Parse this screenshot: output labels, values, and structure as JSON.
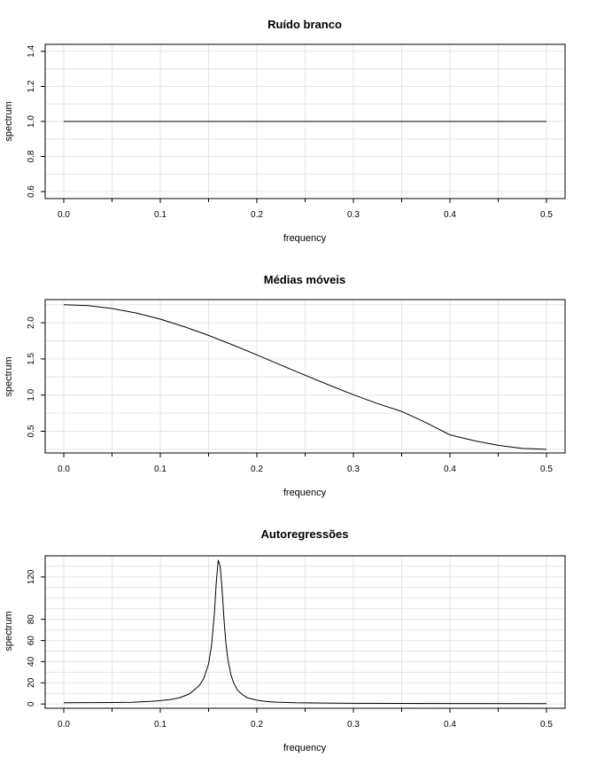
{
  "chart_data": [
    {
      "type": "line",
      "title": "Ruído branco",
      "xlabel": "frequency",
      "ylabel": "spectrum",
      "xlim": [
        0,
        0.5
      ],
      "ylim": [
        0.56,
        1.44
      ],
      "xticks": [
        0,
        0.1,
        0.2,
        0.3,
        0.4,
        0.5
      ],
      "xtick_labels": [
        "0.0",
        "0.1",
        "0.2",
        "0.3",
        "0.4",
        "0.5"
      ],
      "yticks": [
        0.6,
        0.8,
        1.0,
        1.2,
        1.4
      ],
      "ytick_labels": [
        "0.6",
        "0.8",
        "1.0",
        "1.2",
        "1.4"
      ],
      "grid": true,
      "series": [
        {
          "x": [
            0,
            0.05,
            0.1,
            0.15,
            0.2,
            0.25,
            0.3,
            0.35,
            0.4,
            0.45,
            0.5
          ],
          "y": [
            1,
            1,
            1,
            1,
            1,
            1,
            1,
            1,
            1,
            1,
            1
          ]
        }
      ]
    },
    {
      "type": "line",
      "title": "Médias móveis",
      "xlabel": "frequency",
      "ylabel": "spectrum",
      "xlim": [
        0,
        0.5
      ],
      "ylim": [
        0.2,
        2.32
      ],
      "xticks": [
        0,
        0.1,
        0.2,
        0.3,
        0.4,
        0.5
      ],
      "xtick_labels": [
        "0.0",
        "0.1",
        "0.2",
        "0.3",
        "0.4",
        "0.5"
      ],
      "yticks": [
        0.5,
        1.0,
        1.5,
        2.0
      ],
      "ytick_labels": [
        "0.5",
        "1.0",
        "1.5",
        "2.0"
      ],
      "grid": true,
      "series": [
        {
          "x": [
            0,
            0.025,
            0.05,
            0.075,
            0.1,
            0.125,
            0.15,
            0.175,
            0.2,
            0.225,
            0.25,
            0.275,
            0.3,
            0.325,
            0.35,
            0.375,
            0.4,
            0.425,
            0.45,
            0.475,
            0.5
          ],
          "y": [
            2.25,
            2.237,
            2.198,
            2.135,
            2.05,
            1.945,
            1.825,
            1.694,
            1.556,
            1.415,
            1.275,
            1.137,
            1.005,
            0.883,
            0.775,
            0.62,
            0.45,
            0.37,
            0.305,
            0.262,
            0.25
          ]
        }
      ]
    },
    {
      "type": "line",
      "title": "Autoregressões",
      "xlabel": "frequency",
      "ylabel": "spectrum",
      "xlim": [
        0,
        0.5
      ],
      "ylim": [
        -4,
        140
      ],
      "xticks": [
        0,
        0.1,
        0.2,
        0.3,
        0.4,
        0.5
      ],
      "xtick_labels": [
        "0.0",
        "0.1",
        "0.2",
        "0.3",
        "0.4",
        "0.5"
      ],
      "yticks": [
        0,
        20,
        40,
        60,
        80,
        120
      ],
      "ytick_labels": [
        "0",
        "20",
        "40",
        "60",
        "80",
        "120"
      ],
      "grid": true,
      "series": [
        {
          "x": [
            0,
            0.05,
            0.07,
            0.09,
            0.1,
            0.11,
            0.12,
            0.13,
            0.14,
            0.145,
            0.15,
            0.153,
            0.156,
            0.158,
            0.16,
            0.162,
            0.164,
            0.166,
            0.168,
            0.17,
            0.173,
            0.176,
            0.18,
            0.185,
            0.19,
            0.2,
            0.21,
            0.22,
            0.24,
            0.27,
            0.3,
            0.4,
            0.5
          ],
          "y": [
            1.2,
            1.4,
            1.7,
            2.5,
            3.2,
            4.2,
            6,
            9.5,
            17,
            24,
            38,
            55,
            85,
            115,
            136,
            130,
            108,
            80,
            57,
            42,
            28,
            20,
            13,
            9,
            6,
            3.6,
            2.4,
            1.8,
            1.2,
            0.9,
            0.7,
            0.5,
            0.4
          ]
        }
      ]
    }
  ]
}
